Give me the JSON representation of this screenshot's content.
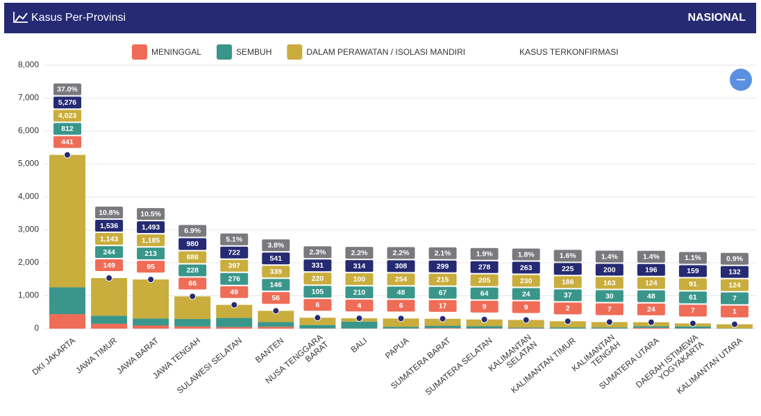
{
  "header": {
    "title": "Kasus Per-Provinsi",
    "scope": "NASIONAL"
  },
  "chart_data": {
    "type": "bar",
    "stacked": true,
    "categories": [
      "DKI JAKARTA",
      "JAWA TIMUR",
      "JAWA BARAT",
      "JAWA TENGAH",
      "SULAWESI SELATAN",
      "BANTEN",
      "NUSA TENGGARA BARAT",
      "BALI",
      "PAPUA",
      "SUMATERA BARAT",
      "SUMATERA SELATAN",
      "KALIMANTAN SELATAN",
      "KALIMANTAN TIMUR",
      "KALIMANTAN TENGAH",
      "SUMATERA UTARA",
      "DAERAH ISTIMEWA YOGYAKARTA",
      "KALIMANTAN UTARA"
    ],
    "series": [
      {
        "name": "MENINGGAL",
        "color": "#ef6c57",
        "values": [
          441,
          149,
          95,
          66,
          49,
          56,
          6,
          4,
          6,
          17,
          9,
          9,
          2,
          7,
          24,
          7,
          1
        ]
      },
      {
        "name": "SEMBUH",
        "color": "#3a968a",
        "values": [
          812,
          244,
          213,
          228,
          276,
          146,
          105,
          210,
          48,
          67,
          64,
          24,
          37,
          30,
          48,
          61,
          7
        ]
      },
      {
        "name": "DALAM PERAWATAN / ISOLASI MANDIRI",
        "color": "#c9ad3d",
        "values": [
          4023,
          1143,
          1185,
          686,
          397,
          339,
          220,
          100,
          254,
          215,
          205,
          230,
          186,
          163,
          124,
          91,
          124
        ],
        "value_labels": [
          "4,023",
          "1,143",
          "1,185",
          "686",
          "397",
          "339",
          "220",
          "100",
          "254",
          "215",
          "205",
          "230",
          "186",
          "163",
          "124",
          "91",
          "124"
        ]
      },
      {
        "name": "KASUS TERKONFIRMASI",
        "color": "#252a72",
        "kind": "dot",
        "values": [
          5276,
          1536,
          1493,
          980,
          722,
          541,
          331,
          314,
          308,
          299,
          278,
          263,
          225,
          200,
          196,
          159,
          132
        ],
        "value_labels": [
          "5,276",
          "1,536",
          "1,493",
          "980",
          "722",
          "541",
          "331",
          "314",
          "308",
          "299",
          "278",
          "263",
          "225",
          "200",
          "196",
          "159",
          "132"
        ]
      }
    ],
    "shares": {
      "color": "#7a7a7e",
      "values": [
        37.0,
        10.8,
        10.5,
        6.9,
        5.1,
        3.8,
        2.3,
        2.2,
        2.2,
        2.1,
        1.9,
        1.8,
        1.6,
        1.4,
        1.4,
        1.1,
        0.9
      ],
      "value_labels": [
        "37.0%",
        "10.8%",
        "10.5%",
        "6.9%",
        "5.1%",
        "3.8%",
        "2.3%",
        "2.2%",
        "2.2%",
        "2.1%",
        "1.9%",
        "1.8%",
        "1.6%",
        "1.4%",
        "1.4%",
        "1.1%",
        "0.9%"
      ]
    },
    "ylim": [
      0,
      8000
    ],
    "yticks": [
      0,
      {
        "value": 1000,
        "label": "1,000"
      },
      {
        "value": 2000,
        "label": "2,000"
      },
      {
        "value": 3000,
        "label": "3,000"
      },
      {
        "value": 4000,
        "label": "4,000"
      },
      {
        "value": 5000,
        "label": "5,000"
      },
      {
        "value": 6000,
        "label": "6,000"
      },
      {
        "value": 7000,
        "label": "7,000"
      },
      {
        "value": 8000,
        "label": "8,000"
      }
    ],
    "grid": true
  }
}
